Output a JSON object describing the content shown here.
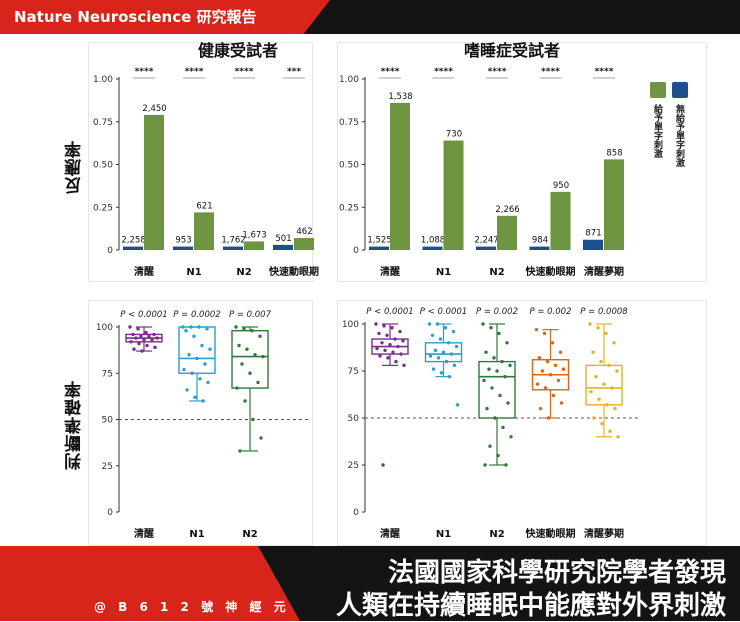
{
  "header": {
    "title": "Nature Neuroscience 研究報告"
  },
  "row_labels": {
    "response": "反應率",
    "accuracy": "判斷準確率"
  },
  "legend": {
    "given": "給予單字刺激",
    "not_given": "無給予單字刺激",
    "colors": {
      "given": "#6d9440",
      "not_given": "#1f4e8c"
    }
  },
  "footer": {
    "credit": "@ B 6 1 2 號 神 經 元",
    "headline_line1": "法國國家科學研究院學者發現",
    "headline_line2": "人類在持續睡眠中能應對外界刺激"
  },
  "chart_data": [
    {
      "type": "bar",
      "title": "健康受試者",
      "ylabel": "反應率",
      "ylim": [
        0,
        1.0
      ],
      "yticks": [
        "0",
        "0.25",
        "0.50",
        "0.75",
        "1.00"
      ],
      "categories": [
        "清醒",
        "N1",
        "N2",
        "快速動眼期"
      ],
      "series": [
        {
          "name": "無給予單字刺激",
          "values": [
            0.02,
            0.02,
            0.02,
            0.03
          ],
          "labels": [
            "2,258",
            "953",
            "1,762",
            "501"
          ]
        },
        {
          "name": "給予單字刺激",
          "values": [
            0.79,
            0.22,
            0.05,
            0.07
          ],
          "labels": [
            "2,450",
            "621",
            "1,673",
            "462"
          ]
        }
      ],
      "significance": [
        "****",
        "****",
        "****",
        "***"
      ]
    },
    {
      "type": "bar",
      "title": "嗜睡症受試者",
      "ylabel": "反應率",
      "ylim": [
        0,
        1.0
      ],
      "yticks": [
        "0",
        "0.25",
        "0.50",
        "0.75",
        "1.00"
      ],
      "categories": [
        "清醒",
        "N1",
        "N2",
        "快速動眼期",
        "清醒夢期"
      ],
      "series": [
        {
          "name": "無給予單字刺激",
          "values": [
            0.02,
            0.02,
            0.02,
            0.02,
            0.06
          ],
          "labels": [
            "1,525",
            "1,088",
            "2,247",
            "984",
            "871"
          ]
        },
        {
          "name": "給予單字刺激",
          "values": [
            0.86,
            0.64,
            0.2,
            0.34,
            0.53
          ],
          "labels": [
            "1,538",
            "730",
            "2,266",
            "950",
            "858"
          ]
        }
      ],
      "significance": [
        "****",
        "****",
        "****",
        "****",
        "****"
      ]
    },
    {
      "type": "box",
      "ylabel": "判斷準確率",
      "ylim": [
        0,
        100
      ],
      "yticks": [
        "0",
        "25",
        "50",
        "75",
        "100"
      ],
      "chance_line": 50,
      "categories": [
        "清醒",
        "N1",
        "N2"
      ],
      "colors": [
        "#7b2d8e",
        "#2aa0c8",
        "#2e7a3a"
      ],
      "pvalues": [
        "P < 0.0001",
        "P = 0.0002",
        "P = 0.007"
      ],
      "boxes": [
        {
          "min": 87,
          "q1": 92,
          "median": 94,
          "q3": 96,
          "max": 100,
          "points": [
            100,
            99,
            97,
            96,
            96,
            95,
            95,
            94,
            94,
            93,
            93,
            92,
            91,
            90,
            89,
            88,
            87
          ]
        },
        {
          "min": 60,
          "q1": 75,
          "median": 83,
          "q3": 100,
          "max": 100,
          "points": [
            100,
            100,
            100,
            99,
            98,
            95,
            90,
            88,
            85,
            83,
            80,
            77,
            75,
            72,
            70,
            66,
            62,
            60
          ]
        },
        {
          "min": 33,
          "q1": 67,
          "median": 84,
          "q3": 98,
          "max": 100,
          "points": [
            100,
            99,
            98,
            95,
            90,
            88,
            85,
            84,
            80,
            75,
            70,
            67,
            60,
            50,
            40,
            33
          ]
        }
      ]
    },
    {
      "type": "box",
      "ylabel": "判斷準確率",
      "ylim": [
        0,
        100
      ],
      "yticks": [
        "0",
        "25",
        "50",
        "75",
        "100"
      ],
      "chance_line": 50,
      "categories": [
        "清醒",
        "N1",
        "N2",
        "快速動眼期",
        "清醒夢期"
      ],
      "colors": [
        "#7b2d8e",
        "#2aa0c8",
        "#2e7a3a",
        "#d9661c",
        "#e8b024"
      ],
      "pvalues": [
        "P < 0.0001",
        "P < 0.0001",
        "P = 0.002",
        "P = 0.002",
        "P = 0.0008"
      ],
      "boxes": [
        {
          "min": 78,
          "q1": 84,
          "median": 88,
          "q3": 92,
          "max": 100,
          "points": [
            100,
            99,
            98,
            96,
            95,
            94,
            92,
            91,
            90,
            89,
            88,
            87,
            86,
            85,
            84,
            83,
            82,
            80,
            78,
            25
          ]
        },
        {
          "min": 72,
          "q1": 80,
          "median": 84,
          "q3": 90,
          "max": 100,
          "points": [
            100,
            100,
            98,
            96,
            94,
            92,
            90,
            88,
            86,
            85,
            84,
            83,
            82,
            80,
            78,
            76,
            74,
            72,
            57
          ]
        },
        {
          "min": 25,
          "q1": 50,
          "median": 72,
          "q3": 80,
          "max": 100,
          "points": [
            100,
            98,
            95,
            90,
            85,
            82,
            80,
            78,
            76,
            75,
            72,
            70,
            66,
            62,
            58,
            55,
            50,
            45,
            40,
            35,
            30,
            25,
            25
          ]
        },
        {
          "min": 50,
          "q1": 65,
          "median": 73,
          "q3": 81,
          "max": 97,
          "points": [
            97,
            95,
            90,
            85,
            82,
            80,
            78,
            76,
            75,
            73,
            70,
            68,
            66,
            62,
            58,
            55,
            50
          ]
        },
        {
          "min": 40,
          "q1": 57,
          "median": 66,
          "q3": 78,
          "max": 100,
          "points": [
            100,
            98,
            95,
            90,
            85,
            80,
            78,
            75,
            72,
            68,
            66,
            64,
            60,
            57,
            55,
            50,
            47,
            43,
            40
          ]
        }
      ]
    }
  ]
}
